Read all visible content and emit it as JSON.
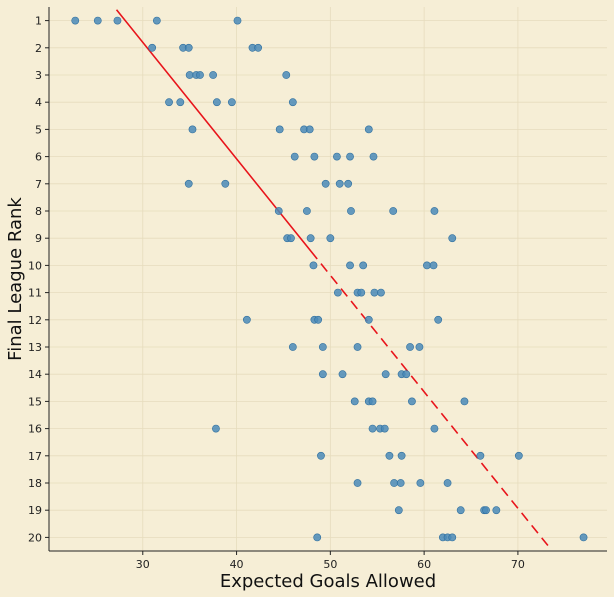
{
  "chart_data": {
    "type": "scatter",
    "title": "",
    "xlabel": "Expected Goals Allowed",
    "ylabel": "Final League Rank",
    "xlim": [
      20,
      79.5
    ],
    "ylim": [
      20.5,
      0.5
    ],
    "y_inverted": true,
    "grid": true,
    "xticks": [
      30,
      40,
      50,
      60,
      70
    ],
    "yticks": [
      1,
      2,
      3,
      4,
      5,
      6,
      7,
      8,
      9,
      10,
      11,
      12,
      13,
      14,
      15,
      16,
      17,
      18,
      19,
      20
    ],
    "colors": {
      "points": "#4a8ab8",
      "trend": "#e8141b",
      "background": "#f6eed6"
    },
    "trend_line": [
      {
        "x": 27.2,
        "y": 0.6
      },
      {
        "x": 73.2,
        "y": 20.3
      }
    ],
    "points": [
      {
        "x": 22.8,
        "y": 1
      },
      {
        "x": 25.2,
        "y": 1
      },
      {
        "x": 27.3,
        "y": 1
      },
      {
        "x": 31.5,
        "y": 1
      },
      {
        "x": 40.1,
        "y": 1
      },
      {
        "x": 31.0,
        "y": 2
      },
      {
        "x": 34.3,
        "y": 2
      },
      {
        "x": 34.9,
        "y": 2
      },
      {
        "x": 41.7,
        "y": 2
      },
      {
        "x": 42.3,
        "y": 2
      },
      {
        "x": 35.0,
        "y": 3
      },
      {
        "x": 35.7,
        "y": 3
      },
      {
        "x": 36.1,
        "y": 3
      },
      {
        "x": 37.5,
        "y": 3
      },
      {
        "x": 45.3,
        "y": 3
      },
      {
        "x": 32.8,
        "y": 4
      },
      {
        "x": 34.0,
        "y": 4
      },
      {
        "x": 37.9,
        "y": 4
      },
      {
        "x": 39.5,
        "y": 4
      },
      {
        "x": 46.0,
        "y": 4
      },
      {
        "x": 35.3,
        "y": 5
      },
      {
        "x": 44.6,
        "y": 5
      },
      {
        "x": 47.2,
        "y": 5
      },
      {
        "x": 47.8,
        "y": 5
      },
      {
        "x": 54.1,
        "y": 5
      },
      {
        "x": 46.2,
        "y": 6
      },
      {
        "x": 48.3,
        "y": 6
      },
      {
        "x": 50.7,
        "y": 6
      },
      {
        "x": 52.1,
        "y": 6
      },
      {
        "x": 54.6,
        "y": 6
      },
      {
        "x": 34.9,
        "y": 7
      },
      {
        "x": 38.8,
        "y": 7
      },
      {
        "x": 49.5,
        "y": 7
      },
      {
        "x": 51.0,
        "y": 7
      },
      {
        "x": 51.9,
        "y": 7
      },
      {
        "x": 44.5,
        "y": 8
      },
      {
        "x": 47.5,
        "y": 8
      },
      {
        "x": 52.2,
        "y": 8
      },
      {
        "x": 56.7,
        "y": 8
      },
      {
        "x": 61.1,
        "y": 8
      },
      {
        "x": 45.4,
        "y": 9
      },
      {
        "x": 45.8,
        "y": 9
      },
      {
        "x": 47.9,
        "y": 9
      },
      {
        "x": 50.0,
        "y": 9
      },
      {
        "x": 63.0,
        "y": 9
      },
      {
        "x": 48.2,
        "y": 10
      },
      {
        "x": 52.1,
        "y": 10
      },
      {
        "x": 53.5,
        "y": 10
      },
      {
        "x": 60.3,
        "y": 10
      },
      {
        "x": 61.0,
        "y": 10
      },
      {
        "x": 50.8,
        "y": 11
      },
      {
        "x": 52.9,
        "y": 11
      },
      {
        "x": 53.3,
        "y": 11
      },
      {
        "x": 54.7,
        "y": 11
      },
      {
        "x": 55.4,
        "y": 11
      },
      {
        "x": 41.1,
        "y": 12
      },
      {
        "x": 48.3,
        "y": 12
      },
      {
        "x": 48.7,
        "y": 12
      },
      {
        "x": 54.1,
        "y": 12
      },
      {
        "x": 61.5,
        "y": 12
      },
      {
        "x": 46.0,
        "y": 13
      },
      {
        "x": 49.2,
        "y": 13
      },
      {
        "x": 52.9,
        "y": 13
      },
      {
        "x": 58.5,
        "y": 13
      },
      {
        "x": 59.5,
        "y": 13
      },
      {
        "x": 49.2,
        "y": 14
      },
      {
        "x": 51.3,
        "y": 14
      },
      {
        "x": 55.9,
        "y": 14
      },
      {
        "x": 57.6,
        "y": 14
      },
      {
        "x": 58.1,
        "y": 14
      },
      {
        "x": 52.6,
        "y": 15
      },
      {
        "x": 54.1,
        "y": 15
      },
      {
        "x": 54.5,
        "y": 15
      },
      {
        "x": 58.7,
        "y": 15
      },
      {
        "x": 64.3,
        "y": 15
      },
      {
        "x": 37.8,
        "y": 16
      },
      {
        "x": 54.5,
        "y": 16
      },
      {
        "x": 55.3,
        "y": 16
      },
      {
        "x": 55.8,
        "y": 16
      },
      {
        "x": 61.1,
        "y": 16
      },
      {
        "x": 49.0,
        "y": 17
      },
      {
        "x": 56.3,
        "y": 17
      },
      {
        "x": 57.6,
        "y": 17
      },
      {
        "x": 66.0,
        "y": 17
      },
      {
        "x": 70.1,
        "y": 17
      },
      {
        "x": 52.9,
        "y": 18
      },
      {
        "x": 56.8,
        "y": 18
      },
      {
        "x": 57.5,
        "y": 18
      },
      {
        "x": 59.6,
        "y": 18
      },
      {
        "x": 62.5,
        "y": 18
      },
      {
        "x": 57.3,
        "y": 19
      },
      {
        "x": 63.9,
        "y": 19
      },
      {
        "x": 66.4,
        "y": 19
      },
      {
        "x": 66.6,
        "y": 19
      },
      {
        "x": 67.7,
        "y": 19
      },
      {
        "x": 48.6,
        "y": 20
      },
      {
        "x": 62.0,
        "y": 20
      },
      {
        "x": 62.5,
        "y": 20
      },
      {
        "x": 63.0,
        "y": 20
      },
      {
        "x": 77.0,
        "y": 20
      }
    ]
  }
}
